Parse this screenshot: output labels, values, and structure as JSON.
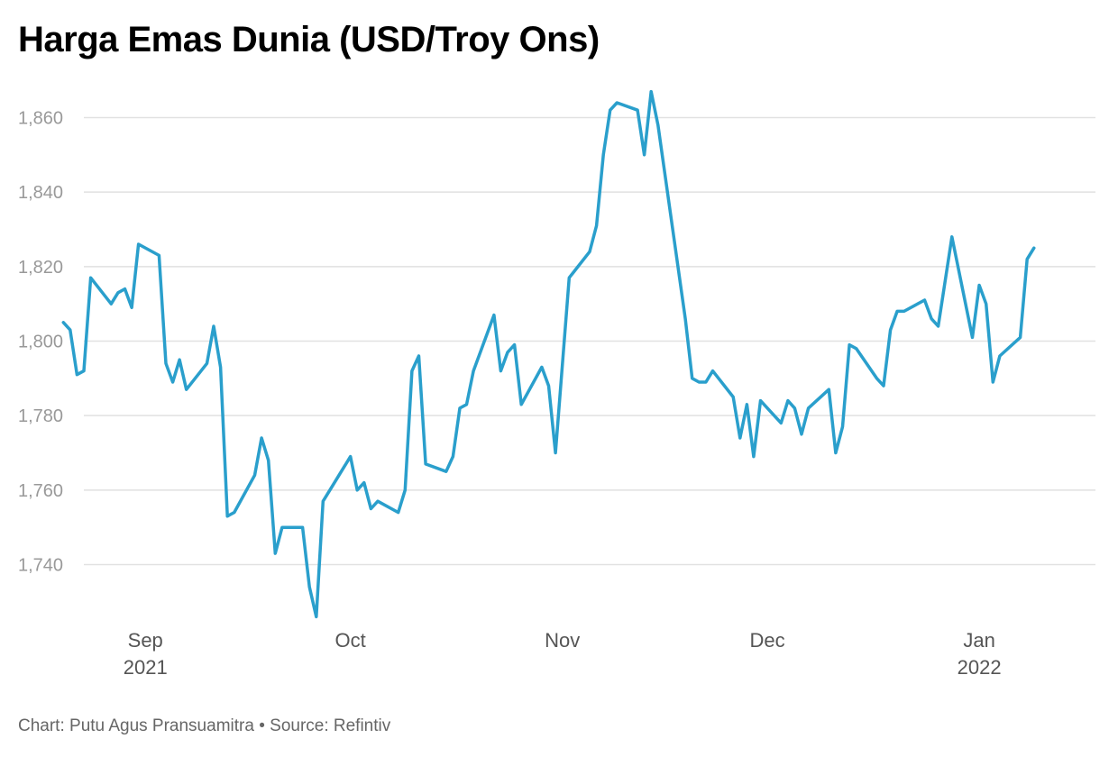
{
  "chart_data": {
    "type": "line",
    "title": "Harga Emas Dunia (USD/Troy Ons)",
    "source": {
      "author": "Chart: Putu Agus Pransuamitra",
      "separator": "•",
      "source": "Source: Refintiv"
    },
    "ylim": [
      1720,
      1870
    ],
    "yticks": [
      {
        "value": 1740,
        "label": "1,740"
      },
      {
        "value": 1760,
        "label": "1,760"
      },
      {
        "value": 1780,
        "label": "1,780"
      },
      {
        "value": 1800,
        "label": "1,800"
      },
      {
        "value": 1820,
        "label": "1,820"
      },
      {
        "value": 1840,
        "label": "1,840"
      },
      {
        "value": 1860,
        "label": "1,860"
      }
    ],
    "xlim": [
      "2021-08-23",
      "2022-01-18"
    ],
    "xticks": [
      {
        "value": "2021-09-01",
        "label": "Sep",
        "sublabel": "2021"
      },
      {
        "value": "2021-10-01",
        "label": "Oct"
      },
      {
        "value": "2021-11-01",
        "label": "Nov"
      },
      {
        "value": "2021-12-01",
        "label": "Dec"
      },
      {
        "value": "2022-01-01",
        "label": "Jan",
        "sublabel": "2022"
      }
    ],
    "grid": true,
    "series": [
      {
        "color": "#2a9fcc",
        "points": [
          [
            "2021-08-20",
            1805
          ],
          [
            "2021-08-21",
            1803
          ],
          [
            "2021-08-22",
            1791
          ],
          [
            "2021-08-23",
            1792
          ],
          [
            "2021-08-24",
            1817
          ],
          [
            "2021-08-27",
            1810
          ],
          [
            "2021-08-28",
            1813
          ],
          [
            "2021-08-29",
            1814
          ],
          [
            "2021-08-30",
            1809
          ],
          [
            "2021-08-31",
            1826
          ],
          [
            "2021-09-03",
            1823
          ],
          [
            "2021-09-04",
            1794
          ],
          [
            "2021-09-05",
            1789
          ],
          [
            "2021-09-06",
            1795
          ],
          [
            "2021-09-07",
            1787
          ],
          [
            "2021-09-10",
            1794
          ],
          [
            "2021-09-11",
            1804
          ],
          [
            "2021-09-12",
            1793
          ],
          [
            "2021-09-13",
            1753
          ],
          [
            "2021-09-14",
            1754
          ],
          [
            "2021-09-17",
            1764
          ],
          [
            "2021-09-18",
            1774
          ],
          [
            "2021-09-19",
            1768
          ],
          [
            "2021-09-20",
            1743
          ],
          [
            "2021-09-21",
            1750
          ],
          [
            "2021-09-24",
            1750
          ],
          [
            "2021-09-25",
            1734
          ],
          [
            "2021-09-26",
            1726
          ],
          [
            "2021-09-27",
            1757
          ],
          [
            "2021-09-28",
            1760
          ],
          [
            "2021-10-01",
            1769
          ],
          [
            "2021-10-02",
            1760
          ],
          [
            "2021-10-03",
            1762
          ],
          [
            "2021-10-04",
            1755
          ],
          [
            "2021-10-05",
            1757
          ],
          [
            "2021-10-08",
            1754
          ],
          [
            "2021-10-09",
            1760
          ],
          [
            "2021-10-10",
            1792
          ],
          [
            "2021-10-11",
            1796
          ],
          [
            "2021-10-12",
            1767
          ],
          [
            "2021-10-15",
            1765
          ],
          [
            "2021-10-16",
            1769
          ],
          [
            "2021-10-17",
            1782
          ],
          [
            "2021-10-18",
            1783
          ],
          [
            "2021-10-19",
            1792
          ],
          [
            "2021-10-22",
            1807
          ],
          [
            "2021-10-23",
            1792
          ],
          [
            "2021-10-24",
            1797
          ],
          [
            "2021-10-25",
            1799
          ],
          [
            "2021-10-26",
            1783
          ],
          [
            "2021-10-29",
            1793
          ],
          [
            "2021-10-30",
            1788
          ],
          [
            "2021-10-31",
            1770
          ],
          [
            "2021-11-02",
            1817
          ],
          [
            "2021-11-05",
            1824
          ],
          [
            "2021-11-06",
            1831
          ],
          [
            "2021-11-07",
            1850
          ],
          [
            "2021-11-08",
            1862
          ],
          [
            "2021-11-09",
            1864
          ],
          [
            "2021-11-12",
            1862
          ],
          [
            "2021-11-13",
            1850
          ],
          [
            "2021-11-14",
            1867
          ],
          [
            "2021-11-15",
            1858
          ],
          [
            "2021-11-19",
            1806
          ],
          [
            "2021-11-20",
            1790
          ],
          [
            "2021-11-21",
            1789
          ],
          [
            "2021-11-22",
            1789
          ],
          [
            "2021-11-23",
            1792
          ],
          [
            "2021-11-26",
            1785
          ],
          [
            "2021-11-27",
            1774
          ],
          [
            "2021-11-28",
            1783
          ],
          [
            "2021-11-29",
            1769
          ],
          [
            "2021-11-30",
            1784
          ],
          [
            "2021-12-03",
            1778
          ],
          [
            "2021-12-04",
            1784
          ],
          [
            "2021-12-05",
            1782
          ],
          [
            "2021-12-06",
            1775
          ],
          [
            "2021-12-07",
            1782
          ],
          [
            "2021-12-10",
            1787
          ],
          [
            "2021-12-11",
            1770
          ],
          [
            "2021-12-12",
            1777
          ],
          [
            "2021-12-13",
            1799
          ],
          [
            "2021-12-14",
            1798
          ],
          [
            "2021-12-17",
            1790
          ],
          [
            "2021-12-18",
            1788
          ],
          [
            "2021-12-19",
            1803
          ],
          [
            "2021-12-20",
            1808
          ],
          [
            "2021-12-21",
            1808
          ],
          [
            "2021-12-24",
            1811
          ],
          [
            "2021-12-25",
            1806
          ],
          [
            "2021-12-26",
            1804
          ],
          [
            "2021-12-28",
            1828
          ],
          [
            "2021-12-31",
            1801
          ],
          [
            "2022-01-01",
            1815
          ],
          [
            "2022-01-02",
            1810
          ],
          [
            "2022-01-03",
            1789
          ],
          [
            "2022-01-04",
            1796
          ],
          [
            "2022-01-07",
            1801
          ],
          [
            "2022-01-08",
            1822
          ],
          [
            "2022-01-09",
            1825
          ]
        ]
      }
    ]
  }
}
